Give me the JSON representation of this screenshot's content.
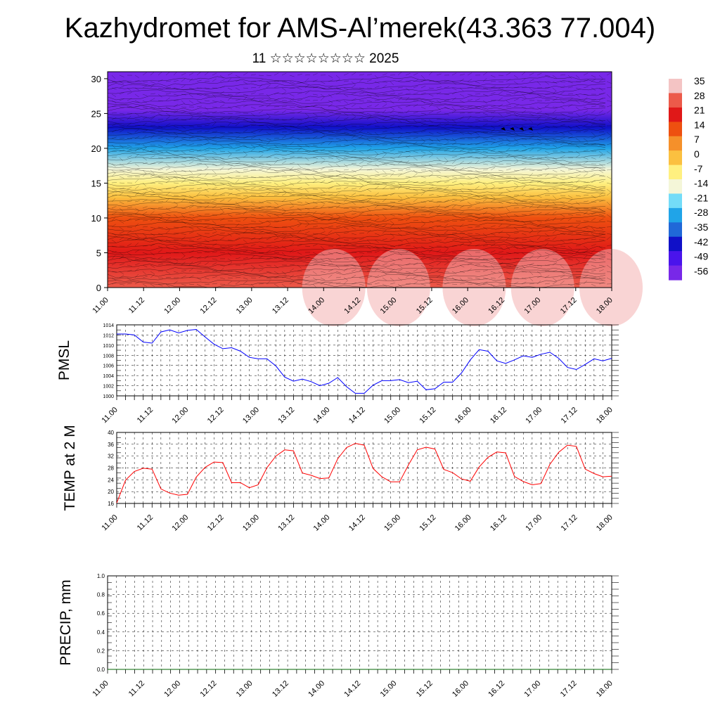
{
  "title": "Kazhydromet for AMS-Al’merek(43.363 77.004)",
  "subtitle": "11 ☆☆☆☆☆☆☆☆ 2025",
  "chart_data": [
    {
      "id": "cross_section",
      "type": "heatmap",
      "title": "",
      "xlabel": "",
      "ylabel": "",
      "x_ticks": [
        "11.00",
        "11.12",
        "12.00",
        "12.12",
        "13.00",
        "13.12",
        "14.00",
        "14.12",
        "15.00",
        "15.12",
        "16.00",
        "16.12",
        "17.00",
        "17.12",
        "18.00"
      ],
      "y_ticks": [
        0,
        5,
        10,
        15,
        20,
        25,
        30
      ],
      "ylim": [
        0,
        31
      ],
      "colorbar_labels": [
        35,
        28,
        21,
        14,
        7,
        0,
        -7,
        -14,
        -21,
        -28,
        -35,
        -42,
        -49,
        -56
      ],
      "colorbar_colors": [
        "#f4c4c4",
        "#ec5a4a",
        "#e01818",
        "#ee5010",
        "#f5902a",
        "#fbc040",
        "#fff080",
        "#f4f6d8",
        "#74dcf8",
        "#20a4e8",
        "#2068d8",
        "#1010c8",
        "#4a14ec",
        "#7828e8"
      ],
      "contour_field_temperature": [
        {
          "level": 0,
          "temp": 30
        },
        {
          "level": 5,
          "temp": 22
        },
        {
          "level": 10,
          "temp": 11
        },
        {
          "level": 13,
          "temp": 2
        },
        {
          "level": 15,
          "temp": -6
        },
        {
          "level": 17,
          "temp": -16
        },
        {
          "level": 20,
          "temp": -30
        },
        {
          "level": 23,
          "temp": -45
        },
        {
          "level": 25.5,
          "temp": -58
        },
        {
          "level": 28,
          "temp": -54
        },
        {
          "level": 31,
          "temp": -58
        }
      ],
      "grid": false,
      "legend": "right"
    },
    {
      "id": "pmsl",
      "type": "line",
      "ylabel": "PMSL",
      "xlabel": "",
      "ylim": [
        1000,
        1014
      ],
      "y_ticks": [
        1000,
        1002,
        1004,
        1006,
        1008,
        1010,
        1012,
        1014
      ],
      "x_ticks": [
        "11.00",
        "11.12",
        "12.00",
        "12.12",
        "13.00",
        "13.12",
        "14.00",
        "14.12",
        "15.00",
        "15.12",
        "16.00",
        "16.12",
        "17.00",
        "17.12",
        "18.00"
      ],
      "x_step_hours": 3,
      "color": "#0000ff",
      "grid": true,
      "values": [
        1012.2,
        1012.2,
        1012.0,
        1010.6,
        1010.4,
        1012.6,
        1013.0,
        1012.4,
        1012.9,
        1013.1,
        1011.6,
        1010.2,
        1009.3,
        1009.5,
        1008.8,
        1007.6,
        1007.3,
        1007.3,
        1005.9,
        1003.7,
        1002.9,
        1003.3,
        1002.8,
        1002.0,
        1002.5,
        1003.6,
        1001.8,
        1000.5,
        1000.5,
        1002.1,
        1003.0,
        1003.0,
        1003.2,
        1002.6,
        1002.9,
        1001.2,
        1001.4,
        1002.7,
        1002.7,
        1004.5,
        1007.1,
        1009.1,
        1008.8,
        1006.9,
        1006.4,
        1007.1,
        1007.9,
        1007.6,
        1008.2,
        1008.6,
        1007.4,
        1005.6,
        1005.2,
        1006.2,
        1007.3,
        1006.9,
        1007.4
      ]
    },
    {
      "id": "temp2m",
      "type": "line",
      "ylabel": "TEMP at 2 M",
      "xlabel": "",
      "ylim": [
        16,
        40
      ],
      "y_ticks": [
        16,
        20,
        24,
        28,
        32,
        36,
        40
      ],
      "x_ticks": [
        "11.00",
        "11.12",
        "12.00",
        "12.12",
        "13.00",
        "13.12",
        "14.00",
        "14.12",
        "15.00",
        "15.12",
        "16.00",
        "16.12",
        "17.00",
        "17.12",
        "18.00"
      ],
      "x_step_hours": 3,
      "color": "#ff0000",
      "grid": true,
      "values": [
        16.2,
        23.9,
        26.8,
        27.9,
        27.6,
        20.9,
        19.5,
        18.8,
        19.1,
        24.9,
        28.2,
        30.0,
        29.8,
        23.0,
        23.0,
        21.3,
        22.3,
        28.1,
        32.0,
        34.1,
        33.8,
        26.3,
        25.5,
        24.4,
        24.6,
        31.1,
        34.9,
        36.3,
        35.7,
        27.8,
        25.0,
        23.3,
        23.3,
        29.0,
        34.1,
        35.0,
        34.4,
        27.5,
        26.4,
        24.3,
        23.5,
        28.3,
        31.6,
        33.4,
        33.1,
        25.1,
        23.4,
        22.3,
        22.7,
        29.2,
        33.3,
        35.7,
        35.3,
        27.6,
        26.1,
        25.0,
        25.2
      ]
    },
    {
      "id": "precip",
      "type": "line",
      "ylabel": "PRECIP, mm",
      "xlabel": "",
      "ylim": [
        0,
        1
      ],
      "y_ticks": [
        "0.0",
        "0.2",
        "0.4",
        "0.6",
        "0.8",
        "1.0"
      ],
      "x_ticks": [
        "11.00",
        "11.12",
        "12.00",
        "12.12",
        "13.00",
        "13.12",
        "14.00",
        "14.12",
        "15.00",
        "15.12",
        "16.00",
        "16.12",
        "17.00",
        "17.12",
        "18.00"
      ],
      "x_step_hours": 3,
      "color": "#006400",
      "grid": true,
      "values": [
        0,
        0,
        0,
        0,
        0,
        0,
        0,
        0,
        0,
        0,
        0,
        0,
        0,
        0,
        0,
        0,
        0,
        0,
        0,
        0,
        0,
        0,
        0,
        0,
        0,
        0,
        0,
        0,
        0,
        0,
        0,
        0,
        0,
        0,
        0,
        0,
        0,
        0,
        0,
        0,
        0,
        0,
        0,
        0,
        0,
        0,
        0,
        0,
        0,
        0,
        0,
        0,
        0,
        0,
        0,
        0,
        0
      ]
    }
  ]
}
